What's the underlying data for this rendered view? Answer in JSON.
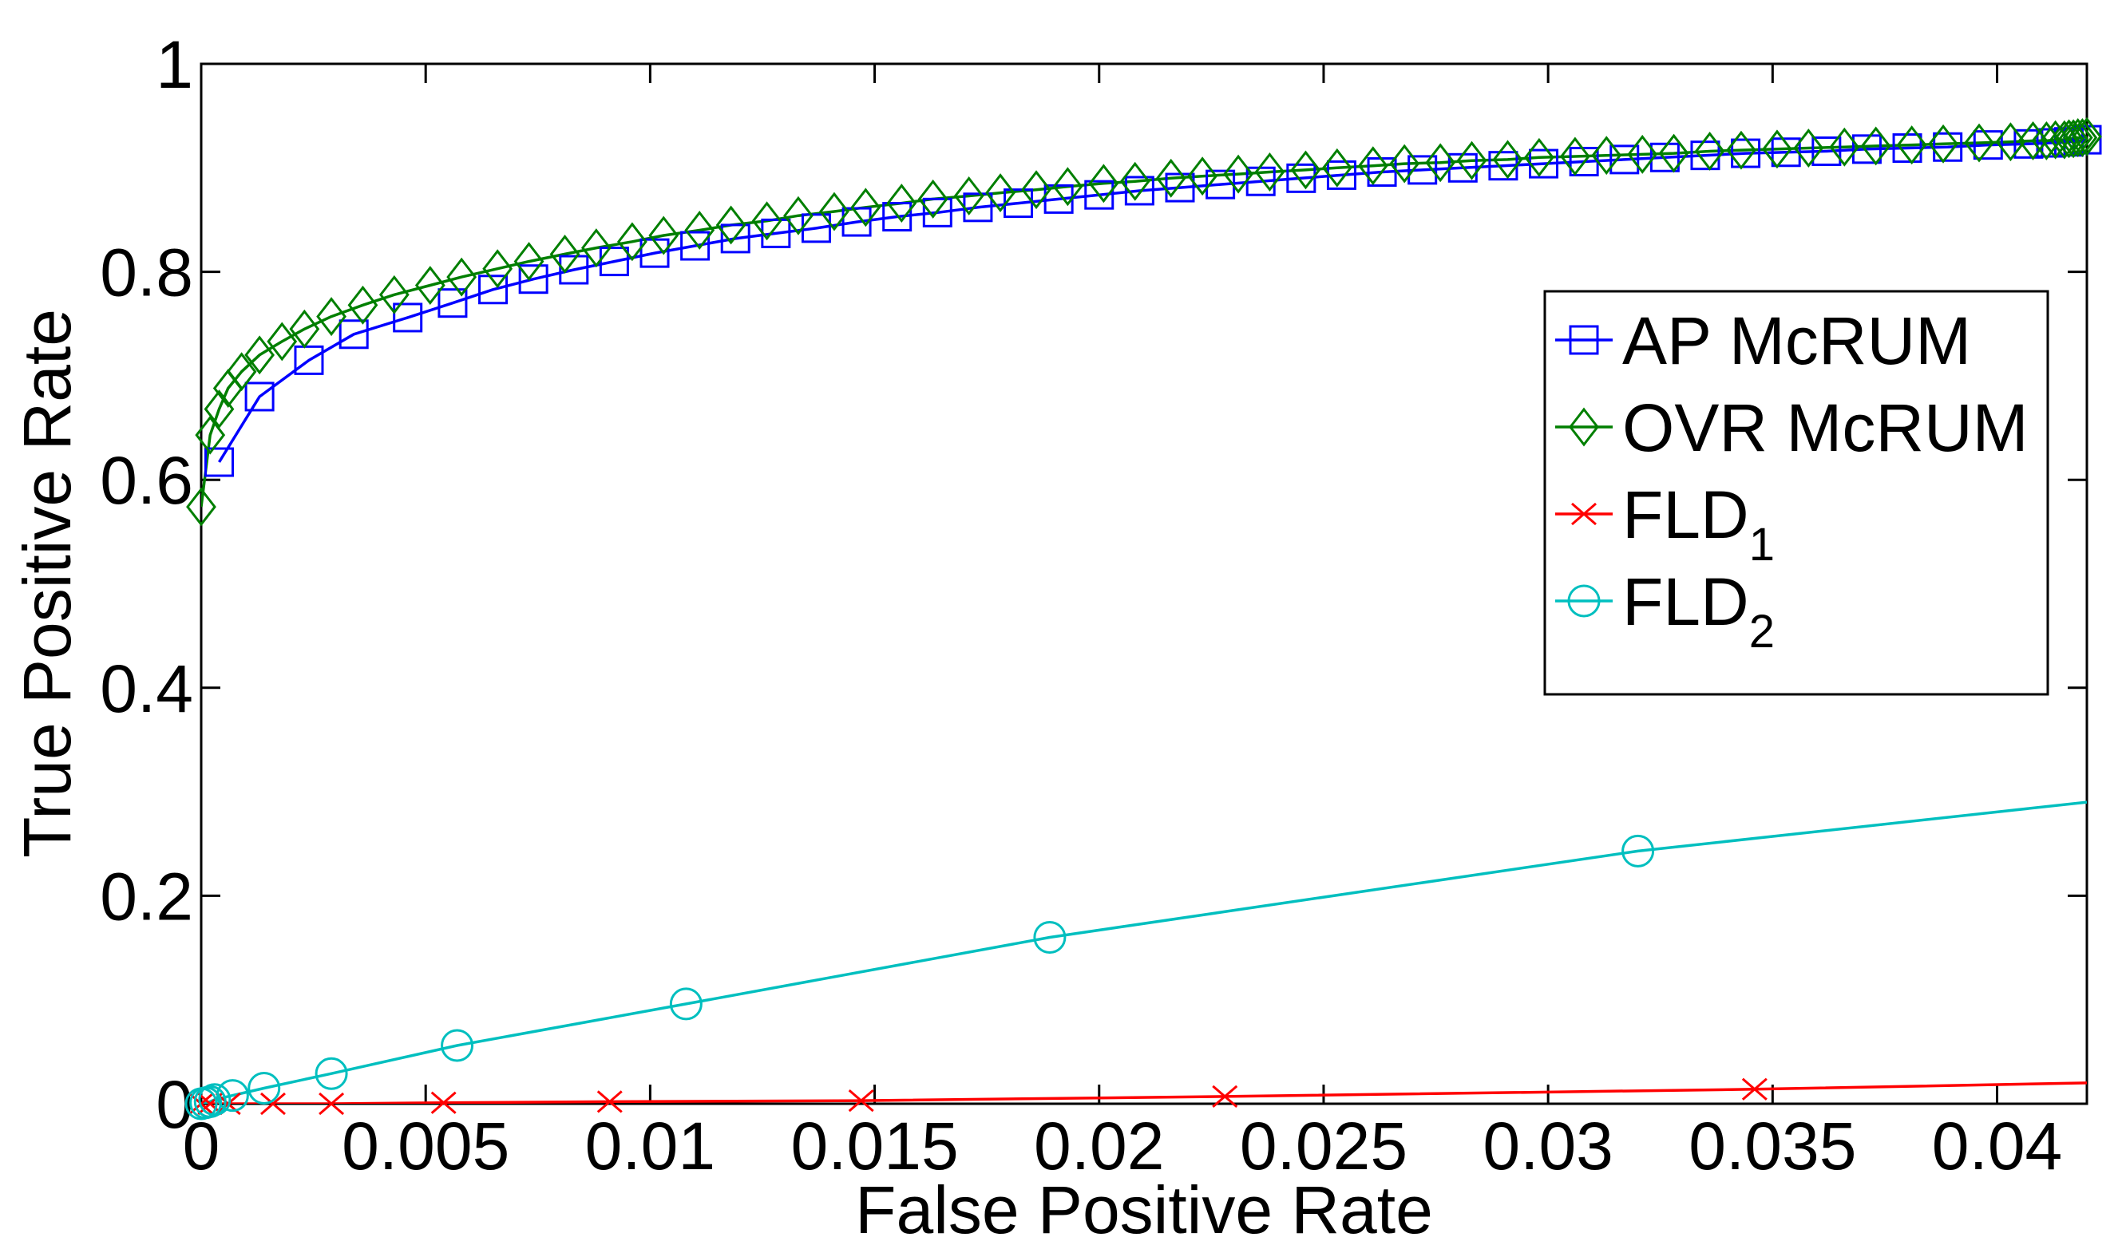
{
  "chart_data": {
    "type": "line",
    "xlabel": "False Positive Rate",
    "ylabel": "True Positive Rate",
    "xlim": [
      0,
      0.042
    ],
    "ylim": [
      0,
      1
    ],
    "x_ticks": [
      0,
      0.005,
      0.01,
      0.015,
      0.02,
      0.025,
      0.03,
      0.035,
      0.04
    ],
    "x_tick_labels": [
      "0",
      "0.005",
      "0.01",
      "0.015",
      "0.02",
      "0.025",
      "0.03",
      "0.035",
      "0.04"
    ],
    "y_ticks": [
      0,
      0.2,
      0.4,
      0.6,
      0.8,
      1
    ],
    "y_tick_labels": [
      "0",
      "0.2",
      "0.4",
      "0.6",
      "0.8",
      "1"
    ],
    "grid": false,
    "legend_position": "right",
    "series": [
      {
        "name": "AP McRUM",
        "legend_label": "AP McRUM",
        "legend_sub": "",
        "color": "#0000ff",
        "marker": "square",
        "x": [
          0.0004,
          0.0013,
          0.0024,
          0.0034,
          0.0046,
          0.0056,
          0.0065,
          0.0074,
          0.0083,
          0.0092,
          0.0101,
          0.011,
          0.0119,
          0.0128,
          0.0137,
          0.0146,
          0.0155,
          0.0164,
          0.0173,
          0.0182,
          0.0191,
          0.02,
          0.0209,
          0.0218,
          0.0227,
          0.0236,
          0.0245,
          0.0254,
          0.0263,
          0.0272,
          0.0281,
          0.029,
          0.0299,
          0.0308,
          0.0317,
          0.0326,
          0.0335,
          0.0344,
          0.0353,
          0.0362,
          0.0371,
          0.038,
          0.0389,
          0.0398,
          0.0407,
          0.0412,
          0.0416,
          0.042
        ],
        "y": [
          0.617,
          0.68,
          0.715,
          0.74,
          0.756,
          0.77,
          0.783,
          0.793,
          0.802,
          0.81,
          0.818,
          0.825,
          0.832,
          0.837,
          0.842,
          0.848,
          0.853,
          0.857,
          0.862,
          0.866,
          0.87,
          0.874,
          0.878,
          0.881,
          0.884,
          0.887,
          0.89,
          0.893,
          0.896,
          0.898,
          0.9,
          0.902,
          0.904,
          0.906,
          0.908,
          0.91,
          0.912,
          0.914,
          0.915,
          0.916,
          0.918,
          0.919,
          0.92,
          0.922,
          0.923,
          0.924,
          0.925,
          0.927
        ]
      },
      {
        "name": "OVR McRUM",
        "legend_label": "OVR McRUM",
        "legend_sub": "",
        "color": "#007f00",
        "marker": "diamond",
        "x": [
          0,
          0.0002,
          0.0004,
          0.0006,
          0.0009,
          0.0013,
          0.0018,
          0.0023,
          0.0029,
          0.0036,
          0.0043,
          0.0051,
          0.0058,
          0.0066,
          0.0073,
          0.0081,
          0.0088,
          0.0096,
          0.0103,
          0.0111,
          0.0118,
          0.0126,
          0.0133,
          0.0141,
          0.0148,
          0.0156,
          0.0163,
          0.0171,
          0.0178,
          0.0186,
          0.0193,
          0.0201,
          0.0208,
          0.0216,
          0.0223,
          0.0231,
          0.0238,
          0.0246,
          0.0253,
          0.0261,
          0.0268,
          0.0276,
          0.0283,
          0.0291,
          0.0298,
          0.0306,
          0.0313,
          0.0321,
          0.0328,
          0.0336,
          0.0343,
          0.0351,
          0.0358,
          0.0366,
          0.0373,
          0.0381,
          0.0388,
          0.0396,
          0.0403,
          0.0408,
          0.0411,
          0.0413,
          0.0415,
          0.0416,
          0.0417,
          0.0418,
          0.0419,
          0.042
        ],
        "y": [
          0.574,
          0.643,
          0.668,
          0.688,
          0.704,
          0.72,
          0.733,
          0.745,
          0.757,
          0.768,
          0.778,
          0.787,
          0.795,
          0.803,
          0.81,
          0.817,
          0.823,
          0.829,
          0.835,
          0.84,
          0.845,
          0.849,
          0.854,
          0.858,
          0.862,
          0.866,
          0.87,
          0.873,
          0.876,
          0.879,
          0.882,
          0.885,
          0.887,
          0.89,
          0.892,
          0.894,
          0.896,
          0.898,
          0.9,
          0.902,
          0.904,
          0.905,
          0.907,
          0.908,
          0.91,
          0.911,
          0.912,
          0.913,
          0.914,
          0.916,
          0.917,
          0.918,
          0.919,
          0.92,
          0.921,
          0.922,
          0.923,
          0.924,
          0.925,
          0.926,
          0.926,
          0.927,
          0.927,
          0.928,
          0.928,
          0.929,
          0.929,
          0.93
        ]
      },
      {
        "name": "FLD1",
        "legend_label": "FLD",
        "legend_sub": "1",
        "color": "#ff0000",
        "marker": "x",
        "x": [
          0,
          0.0002,
          0.0006,
          0.0016,
          0.0029,
          0.0054,
          0.0091,
          0.0147,
          0.0228,
          0.0346,
          0.042
        ],
        "y": [
          0,
          0,
          0,
          0,
          0,
          0.001,
          0.002,
          0.003,
          0.007,
          0.014,
          0.02
        ],
        "marker_indices": [
          0,
          1,
          2,
          3,
          4,
          5,
          6,
          7,
          8,
          9
        ]
      },
      {
        "name": "FLD2",
        "legend_label": "FLD",
        "legend_sub": "2",
        "color": "#00bfbf",
        "marker": "circle",
        "x": [
          0,
          0.0001,
          0.0002,
          0.0003,
          0.0007,
          0.0014,
          0.0029,
          0.0057,
          0.0108,
          0.0189,
          0.032,
          0.042
        ],
        "y": [
          0,
          0.001,
          0.002,
          0.004,
          0.008,
          0.015,
          0.029,
          0.056,
          0.096,
          0.16,
          0.243,
          0.29
        ],
        "marker_indices": [
          0,
          1,
          2,
          3,
          4,
          5,
          6,
          7,
          8,
          9,
          10
        ]
      }
    ]
  }
}
